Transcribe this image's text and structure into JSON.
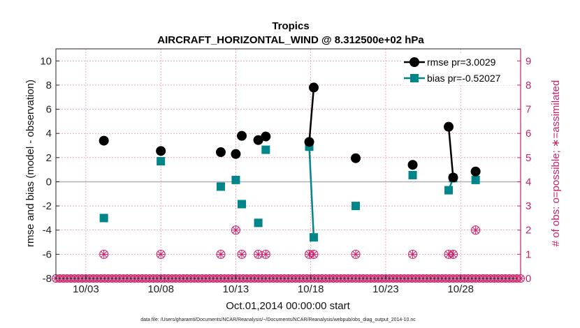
{
  "chart_data": {
    "type": "line",
    "title": "Tropics",
    "subtitle": "AIRCRAFT_HORIZONTAL_WIND @ 8.312500e+02 hPa",
    "ylabel": "rmse and bias (model - observation)",
    "ylabel_right": "# of obs: o=possible; ∗=assimilated",
    "xlabel": "Oct.01,2014 00:00:00 start",
    "footnote": "data file: /Users/gharamti/Documents/NCAR/Reanalysis/~/Documents/NCAR/Reanalysis/webpub/obs_diag_output_2014-10.nc",
    "xlim": [
      1,
      32
    ],
    "ylim": [
      -8,
      11
    ],
    "ylim_right": [
      0,
      9.5
    ],
    "x_ticks": [
      3,
      8,
      13,
      18,
      23,
      28
    ],
    "x_tick_labels": [
      "10/03",
      "10/08",
      "10/13",
      "10/18",
      "10/23",
      "10/28"
    ],
    "y_ticks": [
      -8,
      -6,
      -4,
      -2,
      0,
      2,
      4,
      6,
      8,
      10
    ],
    "y_tick_labels": [
      "-8",
      "-6",
      "-4",
      "-2",
      "0",
      "2",
      "4",
      "6",
      "8",
      "10"
    ],
    "y_right_ticks": [
      0,
      1,
      2,
      3,
      4,
      5,
      6,
      7,
      8,
      9
    ],
    "y_right_tick_labels": [
      "0",
      "1",
      "2",
      "3",
      "4",
      "5",
      "6",
      "7",
      "8",
      "9"
    ],
    "grid": true,
    "colors": {
      "rmse": "#000000",
      "bias": "#00868a",
      "obs": "#cc1f6a",
      "zero": "#b0b0b0",
      "grid": "#e07aa8"
    },
    "series": [
      {
        "name": "rmse pr=3.0029",
        "marker": "circle",
        "points": [
          [
            4.2,
            3.4
          ],
          [
            8.0,
            2.55
          ],
          [
            12.0,
            2.45
          ],
          [
            13.0,
            2.3
          ],
          [
            13.4,
            3.8
          ],
          [
            14.5,
            3.45
          ],
          [
            15.0,
            3.75
          ],
          [
            17.9,
            3.3
          ],
          [
            18.2,
            7.8
          ],
          [
            21.0,
            1.95
          ],
          [
            24.8,
            1.4
          ],
          [
            27.2,
            4.55
          ],
          [
            27.5,
            0.35
          ],
          [
            29.0,
            0.85
          ]
        ],
        "segments": [
          [
            17.9,
            3.3,
            18.2,
            7.8
          ],
          [
            27.2,
            4.55,
            27.5,
            0.35
          ]
        ]
      },
      {
        "name": "bias pr=-0.52027",
        "marker": "square",
        "points": [
          [
            4.2,
            -3.0
          ],
          [
            8.0,
            1.7
          ],
          [
            12.0,
            -0.4
          ],
          [
            13.0,
            0.15
          ],
          [
            13.4,
            -1.85
          ],
          [
            14.5,
            -3.4
          ],
          [
            15.0,
            2.65
          ],
          [
            17.9,
            2.9
          ],
          [
            18.2,
            -4.6
          ],
          [
            21.0,
            -2.0
          ],
          [
            24.8,
            0.55
          ],
          [
            27.2,
            -0.7
          ],
          [
            27.5,
            0.3
          ],
          [
            29.0,
            0.15
          ]
        ],
        "segments": [
          [
            17.9,
            2.9,
            18.2,
            -4.6
          ],
          [
            27.2,
            -0.7,
            27.5,
            0.3
          ]
        ]
      }
    ],
    "obs_counts": {
      "possible": [
        [
          4.2,
          1
        ],
        [
          8.0,
          1
        ],
        [
          12.0,
          1
        ],
        [
          13.0,
          2
        ],
        [
          13.4,
          1
        ],
        [
          14.5,
          1
        ],
        [
          15.0,
          1
        ],
        [
          17.9,
          1
        ],
        [
          18.2,
          1
        ],
        [
          21.0,
          1
        ],
        [
          24.8,
          1
        ],
        [
          27.2,
          1
        ],
        [
          27.5,
          1
        ],
        [
          29.0,
          2
        ]
      ],
      "assimilated": [
        [
          4.2,
          1
        ],
        [
          8.0,
          1
        ],
        [
          12.0,
          1
        ],
        [
          13.0,
          2
        ],
        [
          13.4,
          1
        ],
        [
          14.5,
          1
        ],
        [
          15.0,
          1
        ],
        [
          17.9,
          1
        ],
        [
          18.2,
          1
        ],
        [
          21.0,
          1
        ],
        [
          24.8,
          1
        ],
        [
          27.2,
          1
        ],
        [
          27.5,
          1
        ],
        [
          29.0,
          2
        ]
      ],
      "zero_row_start": 1,
      "zero_row_end": 32,
      "zero_row_step": 0.25
    },
    "legend": {
      "location": "top-right",
      "entries": [
        "rmse pr=3.0029",
        "bias pr=-0.52027"
      ]
    }
  }
}
